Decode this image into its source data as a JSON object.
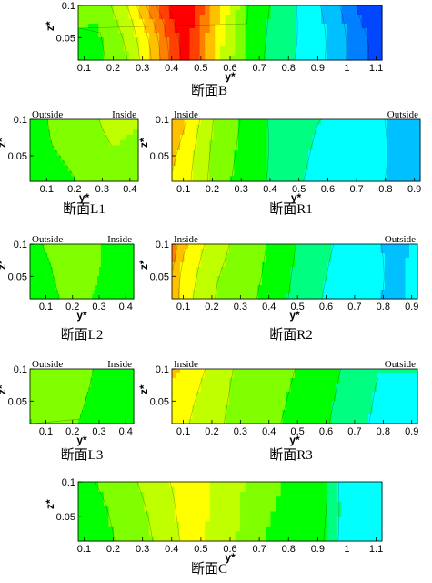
{
  "chart_data": [
    {
      "type": "heatmap",
      "title": "断面B",
      "xlabel": "y*",
      "ylabel": "z*",
      "xlim": [
        0.08,
        1.12
      ],
      "ylim": [
        0.015,
        0.1
      ],
      "x_ticks": [
        "0.1",
        "0.2",
        "0.3",
        "0.4",
        "0.5",
        "0.6",
        "0.7",
        "0.8",
        "0.9",
        "1",
        "1.1"
      ],
      "y_ticks": [
        "0.05",
        "0.1"
      ],
      "side_labels": [],
      "colorscale": [
        "#0047ff",
        "#0080ff",
        "#00c0ff",
        "#00ffff",
        "#00ff80",
        "#00ff00",
        "#80ff00",
        "#c0ff00",
        "#ffff00",
        "#ffc000",
        "#ff8000",
        "#ff4000",
        "#ff0000"
      ],
      "levels_x": [
        0.08,
        0.15,
        0.25,
        0.33,
        0.4,
        0.45,
        0.5,
        0.58,
        0.66,
        0.75,
        0.85,
        0.95,
        1.05,
        1.12
      ],
      "levels": [
        0.46,
        0.45,
        0.55,
        0.7,
        0.88,
        0.96,
        0.82,
        0.6,
        0.45,
        0.36,
        0.3,
        0.22,
        0.1,
        0.06
      ],
      "top_boost": [
        0.0,
        0.02,
        0.06,
        0.1,
        0.06,
        0.04,
        0.05,
        0.05,
        0.0,
        0.0,
        -0.02,
        -0.04,
        -0.06,
        -0.06
      ]
    },
    {
      "type": "heatmap",
      "title": "断面L1",
      "xlabel": "y*",
      "ylabel": "z*",
      "xlim": [
        0.04,
        0.43
      ],
      "ylim": [
        0.015,
        0.1
      ],
      "x_ticks": [
        "0.1",
        "0.2",
        "0.3",
        "0.4"
      ],
      "y_ticks": [
        "0.05",
        "0.1"
      ],
      "side_labels": [
        "Outside",
        "Inside"
      ],
      "colorscale": [
        "#0047ff",
        "#0080ff",
        "#00c0ff",
        "#00ffff",
        "#00ff80",
        "#00ff00",
        "#80ff00",
        "#c0ff00",
        "#ffff00",
        "#ffc000",
        "#ff8000",
        "#ff4000",
        "#ff0000"
      ],
      "levels_x": [
        0.04,
        0.12,
        0.2,
        0.28,
        0.34,
        0.43
      ],
      "levels": [
        0.44,
        0.46,
        0.47,
        0.5,
        0.52,
        0.5
      ],
      "top_boost": [
        -0.02,
        0.0,
        0.0,
        0.02,
        0.06,
        0.04
      ]
    },
    {
      "type": "heatmap",
      "title": "断面R1",
      "xlabel": "y*",
      "ylabel": "z*",
      "xlim": [
        0.06,
        0.92
      ],
      "ylim": [
        0.015,
        0.1
      ],
      "x_ticks": [
        "0.1",
        "0.2",
        "0.3",
        "0.4",
        "0.5",
        "0.6",
        "0.7",
        "0.8",
        "0.9"
      ],
      "y_ticks": [
        "0.05",
        "0.1"
      ],
      "side_labels": [
        "Inside",
        "Outside"
      ],
      "colorscale": [
        "#0047ff",
        "#0080ff",
        "#00c0ff",
        "#00ffff",
        "#00ff80",
        "#00ff00",
        "#80ff00",
        "#c0ff00",
        "#ffff00",
        "#ffc000",
        "#ff8000",
        "#ff4000",
        "#ff0000"
      ],
      "levels_x": [
        0.06,
        0.1,
        0.16,
        0.22,
        0.3,
        0.38,
        0.46,
        0.56,
        0.7,
        0.8,
        0.86,
        0.92
      ],
      "levels": [
        0.7,
        0.66,
        0.58,
        0.5,
        0.45,
        0.4,
        0.34,
        0.3,
        0.28,
        0.24,
        0.2,
        0.24
      ],
      "top_boost": [
        0.06,
        0.04,
        0.02,
        0.0,
        0.0,
        -0.02,
        0.0,
        0.0,
        0.0,
        -0.02,
        -0.04,
        -0.02
      ]
    },
    {
      "type": "heatmap",
      "title": "断面L2",
      "xlabel": "y*",
      "ylabel": "z*",
      "xlim": [
        0.04,
        0.43
      ],
      "ylim": [
        0.015,
        0.1
      ],
      "x_ticks": [
        "0.1",
        "0.2",
        "0.3",
        "0.4"
      ],
      "y_ticks": [
        "0.05",
        "0.1"
      ],
      "side_labels": [
        "Outside",
        "Inside"
      ],
      "colorscale": [
        "#0047ff",
        "#0080ff",
        "#00c0ff",
        "#00ffff",
        "#00ff80",
        "#00ff00",
        "#80ff00",
        "#c0ff00",
        "#ffff00",
        "#ffc000",
        "#ff8000",
        "#ff4000",
        "#ff0000"
      ],
      "levels_x": [
        0.04,
        0.12,
        0.2,
        0.28,
        0.34,
        0.43
      ],
      "levels": [
        0.44,
        0.46,
        0.49,
        0.47,
        0.45,
        0.42
      ],
      "top_boost": [
        0.0,
        0.0,
        0.02,
        0.0,
        -0.02,
        -0.02
      ]
    },
    {
      "type": "heatmap",
      "title": "断面R2",
      "xlabel": "y*",
      "ylabel": "z*",
      "xlim": [
        0.06,
        0.92
      ],
      "ylim": [
        0.015,
        0.1
      ],
      "x_ticks": [
        "0.1",
        "0.2",
        "0.3",
        "0.4",
        "0.5",
        "0.6",
        "0.7",
        "0.8",
        "0.9"
      ],
      "y_ticks": [
        "0.05",
        "0.1"
      ],
      "side_labels": [
        "Inside",
        "Outside"
      ],
      "colorscale": [
        "#0047ff",
        "#0080ff",
        "#00c0ff",
        "#00ffff",
        "#00ff80",
        "#00ff00",
        "#80ff00",
        "#c0ff00",
        "#ffff00",
        "#ffc000",
        "#ff8000",
        "#ff4000",
        "#ff0000"
      ],
      "levels_x": [
        0.06,
        0.1,
        0.16,
        0.22,
        0.3,
        0.38,
        0.46,
        0.54,
        0.62,
        0.75,
        0.84,
        0.92
      ],
      "levels": [
        0.76,
        0.66,
        0.6,
        0.54,
        0.5,
        0.46,
        0.4,
        0.34,
        0.3,
        0.26,
        0.22,
        0.26
      ],
      "top_boost": [
        0.06,
        0.04,
        0.02,
        0.02,
        0.0,
        0.0,
        0.0,
        0.0,
        0.0,
        0.0,
        -0.04,
        -0.02
      ]
    },
    {
      "type": "heatmap",
      "title": "断面L3",
      "xlabel": "y*",
      "ylabel": "z*",
      "xlim": [
        0.04,
        0.43
      ],
      "ylim": [
        0.015,
        0.1
      ],
      "x_ticks": [
        "0.1",
        "0.2",
        "0.3",
        "0.4"
      ],
      "y_ticks": [
        "0.05",
        "0.1"
      ],
      "side_labels": [
        "Outside",
        "Inside"
      ],
      "colorscale": [
        "#0047ff",
        "#0080ff",
        "#00c0ff",
        "#00ffff",
        "#00ff80",
        "#00ff00",
        "#80ff00",
        "#c0ff00",
        "#ffff00",
        "#ffc000",
        "#ff8000",
        "#ff4000",
        "#ff0000"
      ],
      "levels_x": [
        0.04,
        0.12,
        0.2,
        0.28,
        0.34,
        0.43
      ],
      "levels": [
        0.47,
        0.48,
        0.48,
        0.45,
        0.43,
        0.42
      ],
      "top_boost": [
        0.0,
        0.02,
        0.02,
        0.0,
        0.0,
        0.0
      ]
    },
    {
      "type": "heatmap",
      "title": "断面R3",
      "xlabel": "y*",
      "ylabel": "z*",
      "xlim": [
        0.06,
        0.92
      ],
      "ylim": [
        0.015,
        0.1
      ],
      "x_ticks": [
        "0.1",
        "0.2",
        "0.3",
        "0.4",
        "0.5",
        "0.6",
        "0.7",
        "0.8",
        "0.9"
      ],
      "y_ticks": [
        "0.05",
        "0.1"
      ],
      "side_labels": [
        "Inside",
        "Outside"
      ],
      "colorscale": [
        "#0047ff",
        "#0080ff",
        "#00c0ff",
        "#00ffff",
        "#00ff80",
        "#00ff00",
        "#80ff00",
        "#c0ff00",
        "#ffff00",
        "#ffc000",
        "#ff8000",
        "#ff4000",
        "#ff0000"
      ],
      "levels_x": [
        0.06,
        0.1,
        0.16,
        0.24,
        0.32,
        0.42,
        0.52,
        0.6,
        0.68,
        0.78,
        0.92
      ],
      "levels": [
        0.66,
        0.64,
        0.6,
        0.55,
        0.5,
        0.48,
        0.44,
        0.4,
        0.36,
        0.3,
        0.3
      ],
      "top_boost": [
        0.04,
        0.04,
        0.02,
        0.0,
        0.0,
        0.0,
        0.0,
        0.0,
        0.0,
        0.0,
        0.0
      ]
    },
    {
      "type": "heatmap",
      "title": "断面C",
      "xlabel": "y*",
      "ylabel": "z*",
      "xlim": [
        0.08,
        1.12
      ],
      "ylim": [
        0.015,
        0.1
      ],
      "x_ticks": [
        "0.1",
        "0.2",
        "0.3",
        "0.4",
        "0.5",
        "0.6",
        "0.7",
        "0.8",
        "0.9",
        "1",
        "1.1"
      ],
      "y_ticks": [
        "0.05",
        "0.1"
      ],
      "side_labels": [],
      "colorscale": [
        "#0047ff",
        "#0080ff",
        "#00c0ff",
        "#00ffff",
        "#00ff80",
        "#00ff00",
        "#80ff00",
        "#c0ff00",
        "#ffff00",
        "#ffc000",
        "#ff8000",
        "#ff4000",
        "#ff0000"
      ],
      "levels_x": [
        0.08,
        0.18,
        0.27,
        0.35,
        0.42,
        0.48,
        0.54,
        0.62,
        0.72,
        0.82,
        0.92,
        0.98,
        1.05,
        1.12
      ],
      "levels": [
        0.44,
        0.46,
        0.5,
        0.56,
        0.62,
        0.66,
        0.6,
        0.55,
        0.47,
        0.44,
        0.4,
        0.3,
        0.28,
        0.28
      ],
      "top_boost": [
        0.0,
        0.0,
        0.02,
        0.02,
        0.0,
        0.0,
        0.0,
        0.0,
        0.0,
        0.0,
        0.0,
        -0.02,
        0.0,
        0.0
      ]
    }
  ]
}
